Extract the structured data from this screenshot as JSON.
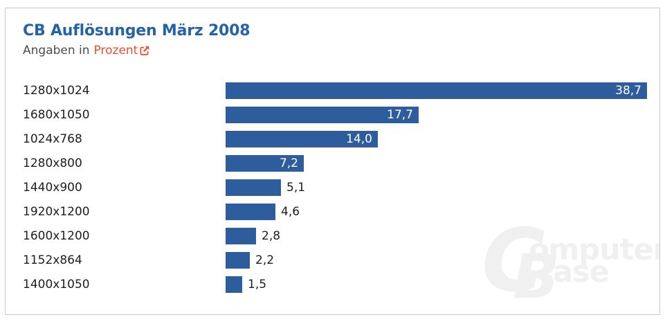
{
  "header": {
    "title": "CB Auflösungen März 2008",
    "subtitle_prefix": "Angaben in",
    "subtitle_link_label": "Prozent"
  },
  "watermark": {
    "big_c": "C",
    "rest1": "omputer",
    "big_b": "B",
    "rest2": "ase"
  },
  "colors": {
    "bar_blue": "#2e5d9d",
    "title_blue": "#2563a8",
    "link_orange": "#e5512d",
    "subtitle_gray": "#4d4d4d",
    "label_dark": "#1d1d1d",
    "value_inside": "#ffffff",
    "card_border": "#c9c9c9",
    "watermark_gray": "#f0f0f0"
  },
  "chart_data": {
    "type": "bar",
    "orientation": "horizontal",
    "title": "CB Auflösungen März 2008",
    "unit_label": "Prozent",
    "categories": [
      "1280x1024",
      "1680x1050",
      "1024x768",
      "1280x800",
      "1440x900",
      "1920x1200",
      "1600x1200",
      "1152x864",
      "1400x1050"
    ],
    "values": [
      38.7,
      17.7,
      14.0,
      7.2,
      5.1,
      4.6,
      2.8,
      2.2,
      1.5
    ],
    "value_labels": [
      "38,7",
      "17,7",
      "14,0",
      "7,2",
      "5,1",
      "4,6",
      "2,8",
      "2,2",
      "1,5"
    ],
    "xlim": [
      0,
      39.9
    ],
    "grid": false,
    "legend": false,
    "bar_color": "#2e5d9d",
    "value_label_rule": "inside-end white for wide bars, outside-end dark for narrow bars"
  }
}
